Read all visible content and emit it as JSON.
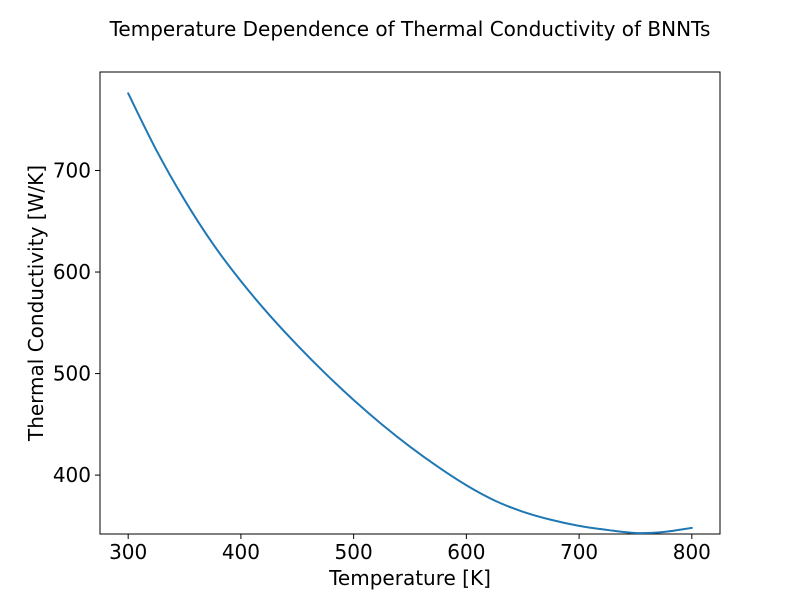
{
  "chart_data": {
    "type": "line",
    "title": "Temperature Dependence of Thermal Conductivity of BNNTs",
    "xlabel": "Temperature [K]",
    "ylabel": "Thermal Conductivity [W/K]",
    "xlim": [
      275,
      825
    ],
    "ylim": [
      342,
      797
    ],
    "xticks": [
      300,
      400,
      500,
      600,
      700,
      800
    ],
    "yticks": [
      400,
      500,
      600,
      700
    ],
    "grid": false,
    "series": [
      {
        "color": "#1f77b4",
        "x": [
          300,
          325,
          350,
          375,
          400,
          425,
          450,
          475,
          500,
          525,
          550,
          575,
          600,
          625,
          650,
          675,
          700,
          725,
          750,
          775,
          800
        ],
        "y": [
          776,
          720,
          671,
          628,
          591,
          558,
          528,
          500,
          474,
          450,
          428,
          408,
          390,
          375,
          364,
          356,
          350,
          346,
          343,
          344,
          348
        ]
      }
    ]
  }
}
